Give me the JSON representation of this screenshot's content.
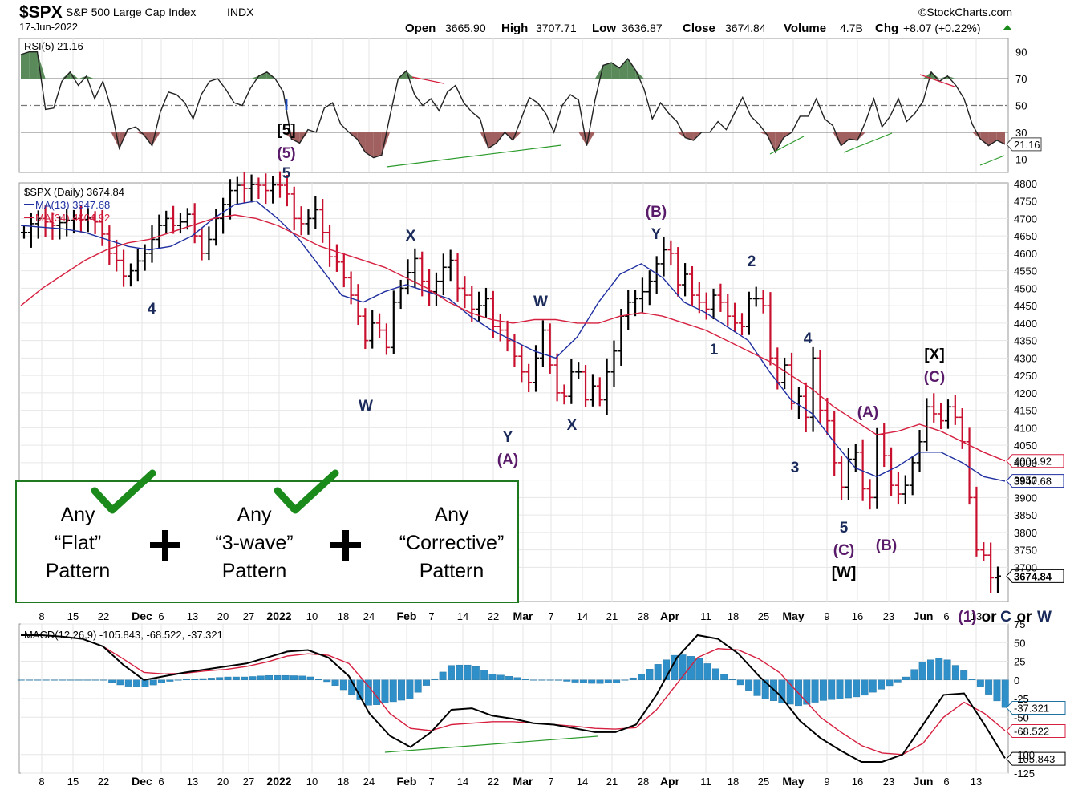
{
  "header": {
    "symbol": "$SPX",
    "name": "S&P 500 Large Cap Index",
    "exchange": "INDX",
    "date": "17-Jun-2022",
    "watermark": "©StockCharts.com",
    "open_label": "Open",
    "open": "3665.90",
    "high_label": "High",
    "high": "3707.71",
    "low_label": "Low",
    "low": "3636.87",
    "close_label": "Close",
    "close": "3674.84",
    "volume_label": "Volume",
    "volume": "4.7B",
    "chg_label": "Chg",
    "chg": "+8.07 (+0.22%)"
  },
  "chart_data": [
    {
      "type": "line",
      "panel": "rsi",
      "title": "RSI(5) 21.16",
      "ylim": [
        0,
        100
      ],
      "y_ticks": [
        10,
        30,
        50,
        70,
        90
      ],
      "reference_lines": [
        30,
        50,
        70
      ],
      "last_value_tag": "21.16",
      "series": [
        {
          "name": "RSI(5)",
          "values": [
            88,
            90,
            90,
            47,
            48,
            68,
            75,
            65,
            72,
            55,
            68,
            48,
            18,
            32,
            34,
            28,
            20,
            45,
            60,
            58,
            52,
            40,
            58,
            68,
            70,
            62,
            52,
            50,
            63,
            72,
            75,
            70,
            60,
            25,
            22,
            32,
            30,
            48,
            52,
            36,
            30,
            25,
            15,
            11,
            13,
            42,
            70,
            76,
            58,
            50,
            55,
            46,
            60,
            65,
            52,
            45,
            40,
            18,
            22,
            30,
            24,
            40,
            56,
            52,
            44,
            30,
            50,
            58,
            54,
            20,
            54,
            80,
            82,
            78,
            85,
            76,
            62,
            40,
            52,
            44,
            38,
            26,
            24,
            30,
            30,
            38,
            32,
            44,
            56,
            42,
            36,
            28,
            15,
            26,
            30,
            42,
            42,
            55,
            40,
            35,
            20,
            25,
            24,
            38,
            55,
            34,
            42,
            55,
            38,
            44,
            53,
            75,
            68,
            72,
            65,
            55,
            36,
            25,
            20,
            24,
            21
          ]
        }
      ]
    },
    {
      "type": "line",
      "panel": "price",
      "title": "$SPX (Daily) 3674.84",
      "ylim": [
        3625,
        4825
      ],
      "y_ticks": [
        3700,
        3750,
        3800,
        3850,
        3900,
        3950,
        4000,
        4050,
        4100,
        4150,
        4200,
        4250,
        4300,
        4350,
        4400,
        4450,
        4500,
        4550,
        4600,
        4650,
        4700,
        4750,
        4800
      ],
      "x_tick_labels": [
        "8",
        "15",
        "22",
        "Dec",
        "6",
        "13",
        "20",
        "27",
        "2022",
        "10",
        "18",
        "24",
        "Feb",
        "7",
        "14",
        "22",
        "Mar",
        "7",
        "14",
        "21",
        "28",
        "Apr",
        "11",
        "18",
        "25",
        "May",
        "9",
        "16",
        "23",
        "Jun",
        "6",
        "13"
      ],
      "series": [
        {
          "name": "$SPX",
          "values": [
            4660,
            4685,
            4700,
            4690,
            4680,
            4688,
            4695,
            4700,
            4697,
            4701,
            4690,
            4655,
            4600,
            4580,
            4535,
            4550,
            4578,
            4600,
            4640,
            4680,
            4700,
            4680,
            4690,
            4712,
            4650,
            4600,
            4640,
            4700,
            4740,
            4780,
            4795,
            4786,
            4797,
            4795,
            4780,
            4796,
            4795,
            4770,
            4700,
            4685,
            4700,
            4725,
            4660,
            4590,
            4575,
            4530,
            4480,
            4420,
            4350,
            4400,
            4380,
            4330,
            4460,
            4500,
            4545,
            4585,
            4520,
            4490,
            4520,
            4560,
            4580,
            4500,
            4480,
            4440,
            4450,
            4470,
            4390,
            4380,
            4350,
            4305,
            4260,
            4230,
            4300,
            4380,
            4280,
            4200,
            4190,
            4260,
            4260,
            4180,
            4220,
            4180,
            4260,
            4320,
            4420,
            4460,
            4470,
            4490,
            4520,
            4570,
            4610,
            4600,
            4510,
            4540,
            4480,
            4460,
            4440,
            4480,
            4460,
            4420,
            4400,
            4390,
            4470,
            4470,
            4450,
            4300,
            4230,
            4280,
            4170,
            4190,
            4130,
            4300,
            4150,
            4120,
            4000,
            3930,
            4010,
            4030,
            3925,
            3900,
            4080,
            4020,
            3935,
            3910,
            3935,
            4000,
            4060,
            4160,
            4140,
            4120,
            4160,
            4130,
            4060,
            3900,
            3750,
            3735,
            3670,
            3675
          ]
        },
        {
          "name": "MA(13)",
          "values": [
            4680,
            4675,
            4670,
            4660,
            4640,
            4620,
            4610,
            4620,
            4650,
            4700,
            4740,
            4750,
            4700,
            4640,
            4560,
            4480,
            4460,
            4490,
            4510,
            4490,
            4470,
            4420,
            4380,
            4350,
            4320,
            4300,
            4360,
            4460,
            4540,
            4570,
            4530,
            4460,
            4430,
            4390,
            4350,
            4260,
            4180,
            4140,
            4060,
            3985,
            3960,
            3990,
            4030,
            4030,
            4000,
            3960,
            3947
          ]
        },
        {
          "name": "MA(34)",
          "values": [
            4450,
            4500,
            4540,
            4580,
            4610,
            4630,
            4640,
            4660,
            4680,
            4700,
            4710,
            4700,
            4680,
            4650,
            4620,
            4600,
            4580,
            4560,
            4530,
            4500,
            4460,
            4430,
            4410,
            4400,
            4410,
            4410,
            4400,
            4400,
            4420,
            4430,
            4420,
            4400,
            4380,
            4350,
            4320,
            4290,
            4250,
            4210,
            4160,
            4120,
            4080,
            4090,
            4110,
            4090,
            4060,
            4030,
            4005
          ]
        }
      ],
      "legend": [
        "MA(13) 3947.68",
        "MA(34) 4004.92"
      ],
      "last_value_tags": [
        "4004.92",
        "3947.68",
        "3674.84"
      ],
      "annotations": [
        {
          "text": "I",
          "color": "#1f4fbf"
        },
        {
          "text": "[5]",
          "color": "#000000"
        },
        {
          "text": "(5)",
          "color": "#5a1a6a"
        },
        {
          "text": "5",
          "color": "#1a2a5a"
        },
        {
          "text": "4",
          "color": "#1a2a5a"
        },
        {
          "text": "W",
          "color": "#1a2a5a"
        },
        {
          "text": "X",
          "color": "#1a2a5a"
        },
        {
          "text": "Y",
          "color": "#1a2a5a"
        },
        {
          "text": "(A)",
          "color": "#5a1a6a"
        },
        {
          "text": "W",
          "color": "#1a2a5a"
        },
        {
          "text": "X",
          "color": "#1a2a5a"
        },
        {
          "text": "(B)",
          "color": "#5a1a6a"
        },
        {
          "text": "Y",
          "color": "#1a2a5a"
        },
        {
          "text": "1",
          "color": "#1a2a5a"
        },
        {
          "text": "2",
          "color": "#1a2a5a"
        },
        {
          "text": "3",
          "color": "#1a2a5a"
        },
        {
          "text": "4",
          "color": "#1a2a5a"
        },
        {
          "text": "5",
          "color": "#1a2a5a"
        },
        {
          "text": "(C)",
          "color": "#5a1a6a"
        },
        {
          "text": "[W]",
          "color": "#000000"
        },
        {
          "text": "(A)",
          "color": "#5a1a6a"
        },
        {
          "text": "(B)",
          "color": "#5a1a6a"
        },
        {
          "text": "[X]",
          "color": "#000000"
        },
        {
          "text": "(C)",
          "color": "#5a1a6a"
        },
        {
          "text": "(1)",
          "color": "#5a1a6a"
        },
        {
          "text": "or",
          "color": "#000000"
        },
        {
          "text": "C",
          "color": "#1a2a5a"
        },
        {
          "text": "or",
          "color": "#000000"
        },
        {
          "text": "W",
          "color": "#1a2a5a"
        }
      ]
    },
    {
      "type": "line",
      "panel": "macd",
      "title": "MACD(12,26,9) -105.843, -68.522, -37.321",
      "ylim": [
        -125,
        75
      ],
      "y_ticks": [
        75,
        50,
        25,
        0,
        -25,
        -50,
        -100,
        -125
      ],
      "last_value_tags": [
        "-37.321",
        "-68.522",
        "-105.843"
      ],
      "series": [
        {
          "name": "MACD(12,26,9)",
          "values": [
            60,
            60,
            58,
            55,
            45,
            20,
            0,
            5,
            10,
            14,
            18,
            22,
            30,
            38,
            40,
            30,
            5,
            -45,
            -75,
            -90,
            -70,
            -40,
            -38,
            -48,
            -52,
            -58,
            -60,
            -65,
            -70,
            -70,
            -60,
            -20,
            30,
            60,
            55,
            35,
            5,
            -20,
            -55,
            -78,
            -95,
            -110,
            -110,
            -100,
            -60,
            -20,
            -18,
            -60,
            -105
          ]
        },
        {
          "name": "Signal",
          "values": [
            60,
            60,
            58,
            55,
            45,
            28,
            10,
            8,
            9,
            12,
            14,
            18,
            24,
            32,
            35,
            33,
            22,
            -10,
            -45,
            -65,
            -68,
            -60,
            -58,
            -56,
            -56,
            -58,
            -60,
            -62,
            -65,
            -66,
            -64,
            -40,
            -5,
            30,
            42,
            40,
            28,
            10,
            -20,
            -50,
            -70,
            -88,
            -98,
            -100,
            -85,
            -50,
            -30,
            -45,
            -68
          ]
        },
        {
          "name": "Histogram",
          "values": [
            0,
            0,
            0,
            0,
            0,
            -8,
            -10,
            -3,
            1,
            2,
            4,
            4,
            6,
            6,
            5,
            -3,
            -17,
            -35,
            -30,
            -25,
            -2,
            20,
            20,
            8,
            4,
            0,
            0,
            -3,
            -5,
            -4,
            4,
            20,
            35,
            30,
            13,
            -5,
            -23,
            -30,
            -35,
            -28,
            -25,
            -22,
            -12,
            0,
            25,
            30,
            12,
            -15,
            -37
          ]
        }
      ]
    }
  ],
  "overlay": {
    "items": [
      {
        "line1": "Any",
        "line2": "“Flat”",
        "line3": "Pattern"
      },
      {
        "line1": "Any",
        "line2": "“3-wave”",
        "line3": "Pattern"
      },
      {
        "line1": "Any",
        "line2": "“Corrective”",
        "line3": "Pattern"
      }
    ],
    "checkmark_color": "#1a8a1a",
    "border_color": "#1f7a1f"
  },
  "colors": {
    "up": "#000000",
    "down": "#c8102e",
    "ma13": "#1f2fa0",
    "ma34": "#d62040",
    "hist": "#2f8fc8"
  }
}
